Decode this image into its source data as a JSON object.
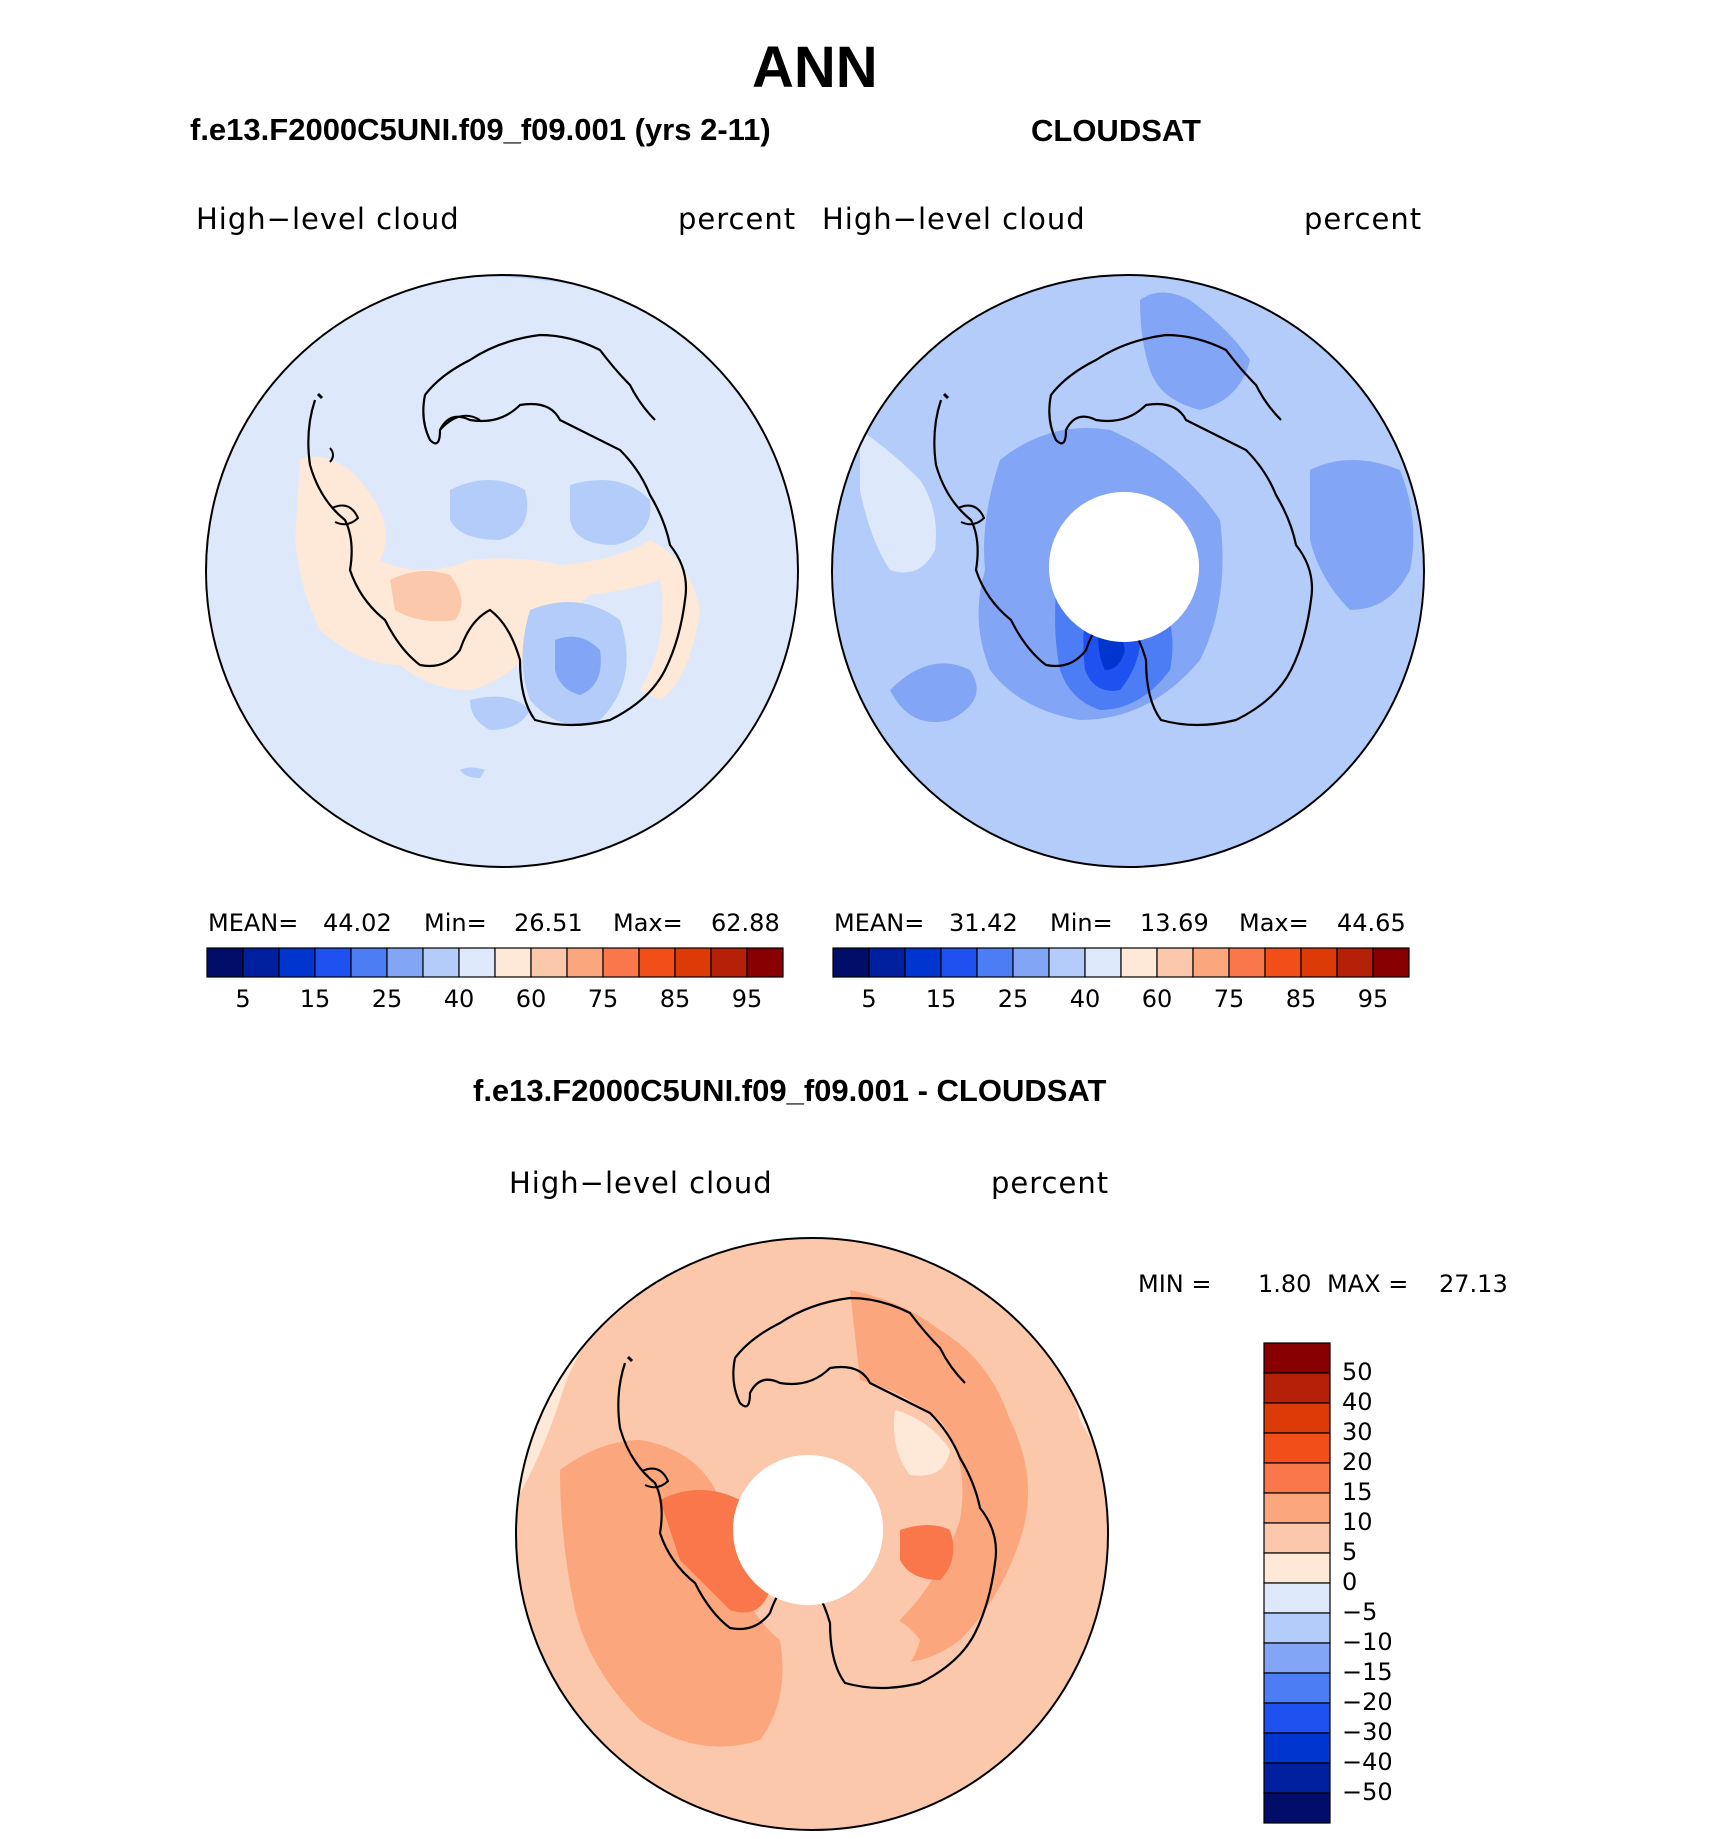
{
  "figure": {
    "title": "ANN",
    "left_panel": {
      "case_title": "f.e13.F2000C5UNI.f09_f09.001 (yrs 2-11)",
      "variable": "High−level cloud",
      "units": "percent",
      "stats": {
        "mean_label": "MEAN=",
        "mean": "44.02",
        "min_label": "Min=",
        "min": "26.51",
        "max_label": "Max=",
        "max": "62.88"
      }
    },
    "right_panel": {
      "case_title": "CLOUDSAT",
      "variable": "High−level cloud",
      "units": "percent",
      "stats": {
        "mean_label": "MEAN=",
        "mean": "31.42",
        "min_label": "Min=",
        "min": "13.69",
        "max_label": "Max=",
        "max": "44.65"
      }
    },
    "diff_panel": {
      "case_title": "f.e13.F2000C5UNI.f09_f09.001 - CLOUDSAT",
      "variable": "High−level cloud",
      "units": "percent",
      "stats": {
        "min_label": "MIN =",
        "min": "1.80",
        "max_label": "MAX =",
        "max": "27.13"
      }
    }
  },
  "chart_data": [
    {
      "type": "map",
      "projection": "south polar stereographic",
      "region": "Antarctica",
      "fields": "High-level cloud (model)",
      "colorbar": {
        "orientation": "horizontal",
        "tick_labels": [
          "5",
          "15",
          "25",
          "40",
          "60",
          "75",
          "85",
          "95"
        ],
        "colors": [
          "#000e6a",
          "#0020a0",
          "#0035d0",
          "#1f50f0",
          "#4d7df5",
          "#82a5f5",
          "#b3ccf9",
          "#dde9fb",
          "#fee8d7",
          "#fcc8ac",
          "#fba67c",
          "#f9774a",
          "#f24e1a",
          "#dc3a07",
          "#b52008",
          "#880000"
        ]
      }
    },
    {
      "type": "map",
      "projection": "south polar stereographic",
      "region": "Antarctica",
      "fields": "High-level cloud (CLOUDSAT)",
      "colorbar": {
        "orientation": "horizontal",
        "tick_labels": [
          "5",
          "15",
          "25",
          "40",
          "60",
          "75",
          "85",
          "95"
        ],
        "colors": [
          "#000e6a",
          "#0020a0",
          "#0035d0",
          "#1f50f0",
          "#4d7df5",
          "#82a5f5",
          "#b3ccf9",
          "#dde9fb",
          "#fee8d7",
          "#fcc8ac",
          "#fba67c",
          "#f9774a",
          "#f24e1a",
          "#dc3a07",
          "#b52008",
          "#880000"
        ]
      }
    },
    {
      "type": "map",
      "projection": "south polar stereographic",
      "region": "Antarctica",
      "fields": "High-level cloud difference",
      "colorbar": {
        "orientation": "vertical",
        "tick_labels": [
          "50",
          "40",
          "30",
          "20",
          "15",
          "10",
          "5",
          "0",
          "−5",
          "−10",
          "−15",
          "−20",
          "−30",
          "−40",
          "−50"
        ],
        "colors": [
          "#880000",
          "#b52008",
          "#dc3a07",
          "#f24e1a",
          "#f9774a",
          "#fba67c",
          "#fcc8ac",
          "#fee8d7",
          "#dde9fb",
          "#b3ccf9",
          "#82a5f5",
          "#4d7df5",
          "#1f50f0",
          "#0035d0",
          "#0020a0",
          "#000e6a"
        ]
      }
    }
  ]
}
